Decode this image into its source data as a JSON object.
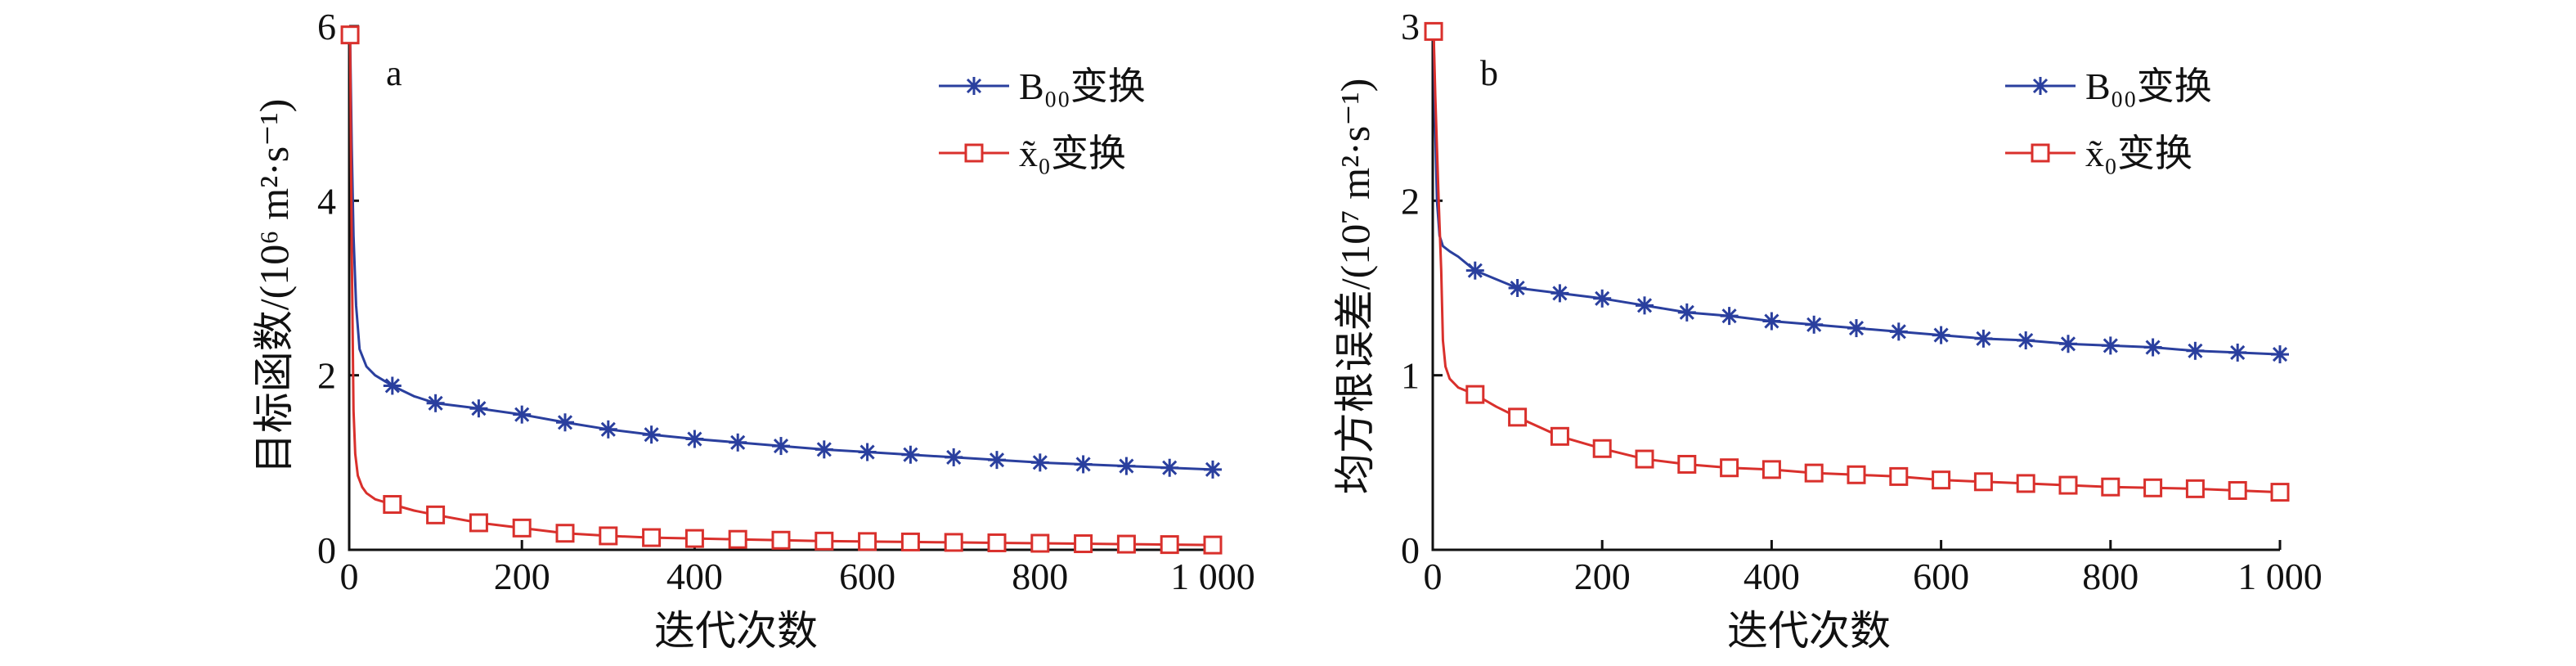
{
  "chart_data": [
    {
      "type": "line",
      "panel_label": "a",
      "ylabel": "目标函数/(10⁶ m²·s⁻¹)",
      "xlabel": "迭代次数",
      "xlim": [
        0,
        1000
      ],
      "ylim": [
        0,
        6
      ],
      "xticks": [
        0,
        200,
        400,
        600,
        800,
        1000
      ],
      "xtick_labels": [
        "0",
        "200",
        "400",
        "600",
        "800",
        "1 000"
      ],
      "yticks": [
        0,
        2,
        4,
        6
      ],
      "ytick_labels": [
        "0",
        "2",
        "4",
        "6"
      ],
      "grid": false,
      "legend_position": "top-right",
      "series": [
        {
          "name": "B₀₀变换",
          "color": "#2a3f9e",
          "marker": "asterisk",
          "line_x": [
            1,
            3,
            5,
            8,
            12,
            20,
            30,
            50,
            75,
            100,
            150,
            200,
            250,
            300,
            350,
            400,
            450,
            500,
            550,
            600,
            650,
            700,
            750,
            800,
            850,
            900,
            950,
            1000
          ],
          "line_y": [
            5.9,
            4.6,
            3.6,
            2.8,
            2.3,
            2.1,
            2.0,
            1.88,
            1.76,
            1.68,
            1.62,
            1.55,
            1.46,
            1.38,
            1.32,
            1.27,
            1.23,
            1.19,
            1.15,
            1.12,
            1.09,
            1.06,
            1.03,
            1.0,
            0.98,
            0.96,
            0.94,
            0.92
          ],
          "marker_x": [
            1,
            50,
            100,
            150,
            200,
            250,
            300,
            350,
            400,
            450,
            500,
            550,
            600,
            650,
            700,
            750,
            800,
            850,
            900,
            950,
            1000
          ],
          "marker_y": [
            5.9,
            1.88,
            1.68,
            1.62,
            1.55,
            1.46,
            1.38,
            1.32,
            1.27,
            1.23,
            1.19,
            1.15,
            1.12,
            1.09,
            1.06,
            1.03,
            1.0,
            0.98,
            0.96,
            0.94,
            0.92
          ]
        },
        {
          "name": "x̃₀变换",
          "color": "#d9302c",
          "marker": "square",
          "line_x": [
            1,
            3,
            5,
            7,
            10,
            15,
            20,
            30,
            50,
            75,
            100,
            150,
            200,
            250,
            300,
            350,
            400,
            450,
            500,
            550,
            600,
            650,
            700,
            750,
            800,
            850,
            900,
            950,
            1000
          ],
          "line_y": [
            5.9,
            3.4,
            1.6,
            1.1,
            0.85,
            0.72,
            0.65,
            0.58,
            0.52,
            0.45,
            0.4,
            0.31,
            0.25,
            0.19,
            0.16,
            0.14,
            0.13,
            0.12,
            0.11,
            0.1,
            0.095,
            0.09,
            0.085,
            0.08,
            0.075,
            0.07,
            0.065,
            0.06,
            0.055
          ],
          "marker_x": [
            1,
            50,
            100,
            150,
            200,
            250,
            300,
            350,
            400,
            450,
            500,
            550,
            600,
            650,
            700,
            750,
            800,
            850,
            900,
            950,
            1000
          ],
          "marker_y": [
            5.9,
            0.52,
            0.4,
            0.31,
            0.25,
            0.19,
            0.16,
            0.14,
            0.13,
            0.12,
            0.11,
            0.1,
            0.095,
            0.09,
            0.085,
            0.08,
            0.075,
            0.07,
            0.065,
            0.06,
            0.055
          ]
        }
      ]
    },
    {
      "type": "line",
      "panel_label": "b",
      "ylabel": "均方根误差/(10⁷ m²·s⁻¹)",
      "xlabel": "迭代次数",
      "xlim": [
        0,
        1000
      ],
      "ylim": [
        0,
        3
      ],
      "xticks": [
        0,
        200,
        400,
        600,
        800,
        1000
      ],
      "xtick_labels": [
        "0",
        "200",
        "400",
        "600",
        "800",
        "1 000"
      ],
      "yticks": [
        0,
        1,
        2,
        3
      ],
      "ytick_labels": [
        "0",
        "1",
        "2",
        "3"
      ],
      "grid": false,
      "legend_position": "top-right",
      "series": [
        {
          "name": "B₀₀变换",
          "color": "#2a3f9e",
          "marker": "asterisk",
          "line_x": [
            1,
            3,
            5,
            8,
            12,
            20,
            30,
            50,
            75,
            100,
            150,
            200,
            250,
            300,
            350,
            400,
            450,
            500,
            550,
            600,
            650,
            700,
            750,
            800,
            850,
            900,
            950,
            1000
          ],
          "line_y": [
            2.97,
            2.4,
            2.0,
            1.8,
            1.74,
            1.71,
            1.68,
            1.6,
            1.55,
            1.5,
            1.47,
            1.44,
            1.4,
            1.36,
            1.34,
            1.31,
            1.29,
            1.27,
            1.25,
            1.23,
            1.21,
            1.2,
            1.18,
            1.17,
            1.16,
            1.14,
            1.13,
            1.12
          ],
          "marker_x": [
            1,
            50,
            100,
            150,
            200,
            250,
            300,
            350,
            400,
            450,
            500,
            550,
            600,
            650,
            700,
            750,
            800,
            850,
            900,
            950,
            1000
          ],
          "marker_y": [
            2.97,
            1.6,
            1.5,
            1.47,
            1.44,
            1.4,
            1.36,
            1.34,
            1.31,
            1.29,
            1.27,
            1.25,
            1.23,
            1.21,
            1.2,
            1.18,
            1.17,
            1.16,
            1.14,
            1.13,
            1.12
          ]
        },
        {
          "name": "x̃₀变换",
          "color": "#d9302c",
          "marker": "square",
          "line_x": [
            1,
            3,
            5,
            7,
            10,
            12,
            15,
            20,
            30,
            50,
            75,
            100,
            150,
            200,
            250,
            300,
            350,
            400,
            450,
            500,
            550,
            600,
            650,
            700,
            750,
            800,
            850,
            900,
            950,
            1000
          ],
          "line_y": [
            2.97,
            2.6,
            2.3,
            2.0,
            1.6,
            1.2,
            1.05,
            0.98,
            0.93,
            0.89,
            0.82,
            0.76,
            0.65,
            0.58,
            0.52,
            0.49,
            0.47,
            0.46,
            0.44,
            0.43,
            0.42,
            0.4,
            0.39,
            0.38,
            0.37,
            0.36,
            0.355,
            0.35,
            0.34,
            0.33
          ],
          "marker_x": [
            1,
            50,
            100,
            150,
            200,
            250,
            300,
            350,
            400,
            450,
            500,
            550,
            600,
            650,
            700,
            750,
            800,
            850,
            900,
            950,
            1000
          ],
          "marker_y": [
            2.97,
            0.89,
            0.76,
            0.65,
            0.58,
            0.52,
            0.49,
            0.47,
            0.46,
            0.44,
            0.43,
            0.42,
            0.4,
            0.39,
            0.38,
            0.37,
            0.36,
            0.355,
            0.35,
            0.34,
            0.33
          ]
        }
      ]
    }
  ]
}
